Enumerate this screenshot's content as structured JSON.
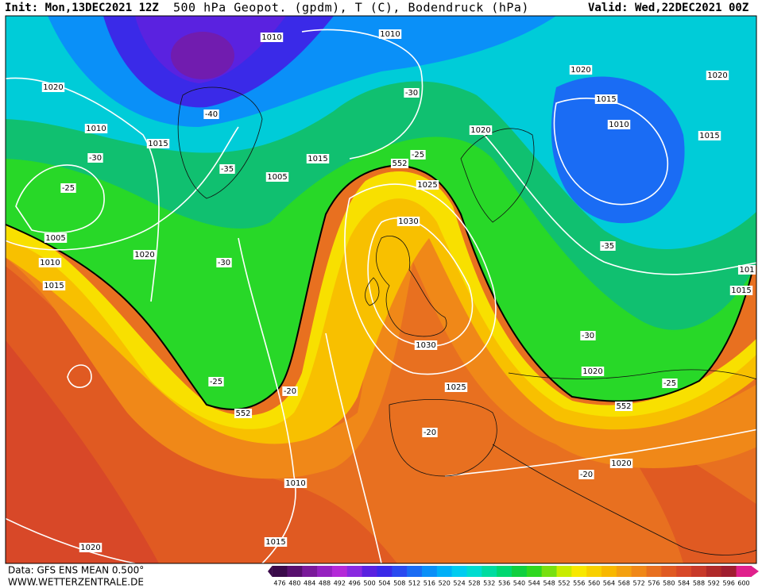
{
  "header": {
    "init": "Init: Mon,13DEC2021 12Z",
    "title": "500 hPa Geopot. (gpdm), T (C), Bodendruck (hPa)",
    "valid": "Valid: Wed,22DEC2021 00Z"
  },
  "footer": {
    "data": "Data: GFS ENS MEAN 0.500°",
    "site": "WWW.WETTERZENTRALE.DE"
  },
  "map_labels": [
    "1010",
    "1010",
    "1020",
    "1020",
    "1020",
    "-30",
    "1015",
    "-40",
    "1010",
    "1010",
    "1020",
    "1015",
    "1015",
    "-30",
    "-25",
    "552",
    "-35",
    "1015",
    "1005",
    "1025",
    "-25",
    "1030",
    "1005",
    "1020",
    "-30",
    "1010",
    "-35",
    "101",
    "1015",
    "1015",
    "-30",
    "1030",
    "1020",
    "-25",
    "-20",
    "1025",
    "-25",
    "552",
    "552",
    "-20",
    "1020",
    "-20",
    "1010",
    "1015",
    "1020"
  ],
  "scale": {
    "values": [
      476,
      480,
      484,
      488,
      492,
      496,
      500,
      504,
      508,
      512,
      516,
      520,
      524,
      528,
      532,
      536,
      540,
      544,
      548,
      552,
      556,
      560,
      564,
      568,
      572,
      576,
      580,
      584,
      588,
      592,
      596,
      600
    ],
    "colors": [
      "#3a0a4a",
      "#58106e",
      "#7a1a9a",
      "#9622c0",
      "#b42ad8",
      "#8a2ae0",
      "#5a22e0",
      "#3a2ae8",
      "#2a4af0",
      "#1a6cf4",
      "#0a90f8",
      "#00b0f8",
      "#00ccf0",
      "#00dcd0",
      "#00dca0",
      "#00d870",
      "#10d040",
      "#30d820",
      "#78e010",
      "#c8ec00",
      "#f8e800",
      "#f8d000",
      "#f8b800",
      "#f4a010",
      "#f08818",
      "#e87020",
      "#e05a22",
      "#d84828",
      "#c83a2a",
      "#b02a2a",
      "#a01e30",
      "#e0208c"
    ]
  }
}
